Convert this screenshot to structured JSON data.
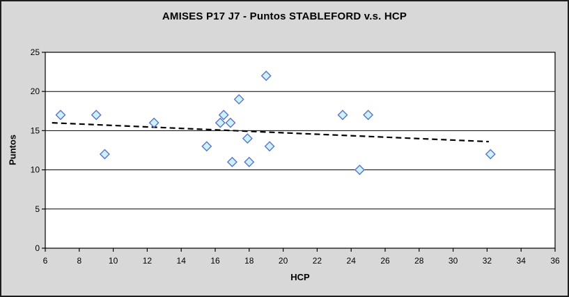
{
  "chart_data": {
    "type": "scatter",
    "title": "AMISES P17 J7 - Puntos STABLEFORD v.s. HCP",
    "xlabel": "HCP",
    "ylabel": "Puntos",
    "xlim": [
      6,
      36
    ],
    "ylim": [
      0,
      25
    ],
    "x_ticks": [
      6,
      8,
      10,
      12,
      14,
      16,
      18,
      20,
      22,
      24,
      26,
      28,
      30,
      32,
      34,
      36
    ],
    "y_ticks": [
      0,
      5,
      10,
      15,
      20,
      25
    ],
    "grid": "horizontal-only",
    "legend_position": "none",
    "series": [
      {
        "name": "Puntos STABLEFORD",
        "marker": "diamond",
        "points": [
          [
            6.9,
            17
          ],
          [
            9,
            17
          ],
          [
            9.5,
            12
          ],
          [
            12.4,
            16
          ],
          [
            15.5,
            13
          ],
          [
            16.3,
            16
          ],
          [
            16.5,
            17
          ],
          [
            16.9,
            16
          ],
          [
            17,
            11
          ],
          [
            17.4,
            19
          ],
          [
            17.9,
            14
          ],
          [
            18,
            11
          ],
          [
            19,
            22
          ],
          [
            19.2,
            13
          ],
          [
            23.5,
            17
          ],
          [
            24.5,
            10
          ],
          [
            25,
            17
          ],
          [
            32.2,
            12
          ]
        ]
      }
    ],
    "trendline": {
      "type": "linear",
      "style": "dashed",
      "x1": 6.4,
      "y1": 16.0,
      "x2": 32.1,
      "y2": 13.6
    }
  },
  "colors": {
    "background": "#D8D8D8",
    "plot_background": "#FFFFFF",
    "marker_fill": "#CDF1FB",
    "marker_stroke": "#5B74C4",
    "axis": "#000000",
    "gridline": "#000000",
    "trendline": "#000000",
    "text": "#000000"
  }
}
